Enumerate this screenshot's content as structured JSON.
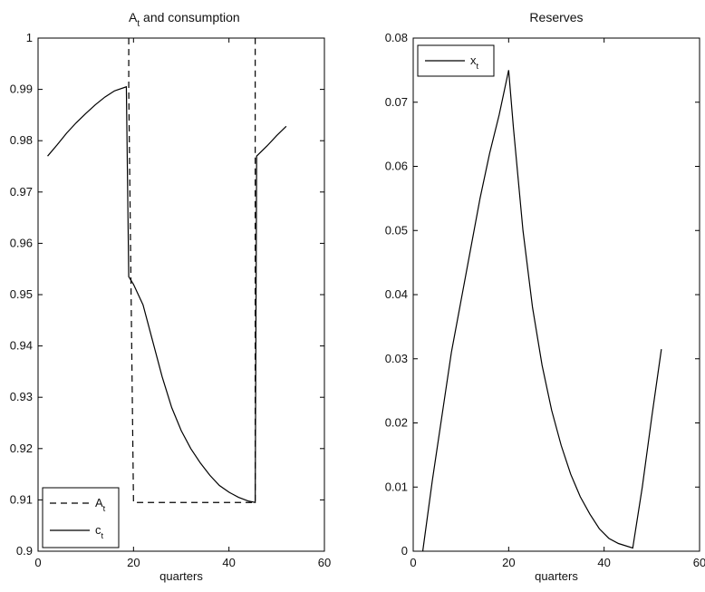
{
  "chart_data": [
    {
      "type": "line",
      "title_main": "A",
      "title_sub": "t",
      "title_rest": " and consumption",
      "xlabel": "quarters",
      "ylabel": "",
      "xlim": [
        0,
        60
      ],
      "ylim": [
        0.9,
        1.0
      ],
      "xticks": [
        "0",
        "20",
        "40",
        "60"
      ],
      "yticks": [
        "0.9",
        "0.91",
        "0.92",
        "0.93",
        "0.94",
        "0.95",
        "0.96",
        "0.97",
        "0.98",
        "0.99",
        "1"
      ],
      "legend_position": "bottom-left",
      "series": [
        {
          "name_main": "A",
          "name_sub": "t",
          "style": "dashed",
          "points": [
            [
              19,
              1.0
            ],
            [
              19,
              0.99
            ],
            [
              20,
              0.9095
            ],
            [
              45.5,
              0.9095
            ],
            [
              45.5,
              1.0
            ]
          ]
        },
        {
          "name_main": "c",
          "name_sub": "t",
          "style": "solid",
          "points": [
            [
              2,
              0.977
            ],
            [
              4,
              0.9792
            ],
            [
              6,
              0.9815
            ],
            [
              8,
              0.9835
            ],
            [
              10,
              0.9853
            ],
            [
              12,
              0.987
            ],
            [
              14,
              0.9885
            ],
            [
              16,
              0.9897
            ],
            [
              18.5,
              0.9905
            ],
            [
              19,
              0.9535
            ],
            [
              20,
              0.952
            ],
            [
              22,
              0.948
            ],
            [
              24,
              0.941
            ],
            [
              26,
              0.934
            ],
            [
              28,
              0.928
            ],
            [
              30,
              0.9235
            ],
            [
              32,
              0.92
            ],
            [
              34,
              0.9172
            ],
            [
              36,
              0.9148
            ],
            [
              38,
              0.9128
            ],
            [
              40,
              0.9115
            ],
            [
              42,
              0.9105
            ],
            [
              44,
              0.9098
            ],
            [
              45.5,
              0.9095
            ],
            [
              45.8,
              0.977
            ],
            [
              48,
              0.979
            ],
            [
              50,
              0.981
            ],
            [
              52,
              0.9828
            ]
          ]
        }
      ]
    },
    {
      "type": "line",
      "title_main": "Reserves",
      "title_sub": "",
      "title_rest": "",
      "xlabel": "quarters",
      "ylabel": "",
      "xlim": [
        0,
        60
      ],
      "ylim": [
        0,
        0.08
      ],
      "xticks": [
        "0",
        "20",
        "40",
        "60"
      ],
      "yticks": [
        "0",
        "0.01",
        "0.02",
        "0.03",
        "0.04",
        "0.05",
        "0.06",
        "0.07",
        "0.08"
      ],
      "legend_position": "top-left",
      "series": [
        {
          "name_main": "x",
          "name_sub": "t",
          "style": "solid",
          "points": [
            [
              2,
              0
            ],
            [
              4,
              0.011
            ],
            [
              6,
              0.021
            ],
            [
              8,
              0.031
            ],
            [
              10,
              0.039
            ],
            [
              12,
              0.047
            ],
            [
              14,
              0.055
            ],
            [
              16,
              0.062
            ],
            [
              18,
              0.068
            ],
            [
              20,
              0.075
            ],
            [
              21,
              0.066
            ],
            [
              23,
              0.05
            ],
            [
              25,
              0.038
            ],
            [
              27,
              0.029
            ],
            [
              29,
              0.022
            ],
            [
              31,
              0.0165
            ],
            [
              33,
              0.012
            ],
            [
              35,
              0.0085
            ],
            [
              37,
              0.0058
            ],
            [
              39,
              0.0035
            ],
            [
              41,
              0.002
            ],
            [
              43,
              0.0012
            ],
            [
              46,
              0.0005
            ],
            [
              48,
              0.01
            ],
            [
              50,
              0.021
            ],
            [
              52,
              0.0315
            ]
          ]
        }
      ]
    }
  ]
}
